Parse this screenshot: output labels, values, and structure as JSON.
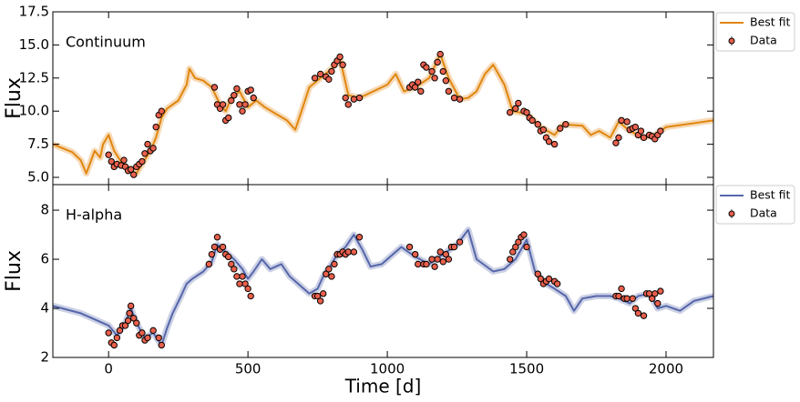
{
  "chart_data": [
    {
      "type": "line",
      "annotation": "Continuum",
      "y_label": "Flux",
      "xlim": [
        -200,
        2170
      ],
      "xticks": [
        0,
        500,
        1000,
        1500,
        2000
      ],
      "ylim": [
        4.45,
        17.5
      ],
      "yticks": [
        {
          "value": 5,
          "label": "5.0"
        },
        7.5,
        {
          "value": 10,
          "label": "10.0"
        },
        12.5,
        {
          "value": 15,
          "label": "15.0"
        },
        17.5
      ],
      "legend": "upper right outside",
      "series": [
        {
          "name": "Best fit",
          "color": "#e0860f",
          "x": [
            -200,
            -130,
            -100,
            -80,
            -50,
            -30,
            -20,
            0,
            20,
            50,
            80,
            100,
            120,
            150,
            170,
            190,
            210,
            250,
            280,
            290,
            310,
            340,
            370,
            400,
            420,
            440,
            470,
            500,
            530,
            560,
            600,
            640,
            670,
            700,
            720,
            760,
            800,
            830,
            860,
            900,
            950,
            1000,
            1030,
            1060,
            1100,
            1150,
            1190,
            1220,
            1260,
            1290,
            1320,
            1350,
            1380,
            1420,
            1450,
            1500,
            1550,
            1600,
            1630,
            1700,
            1730,
            1760,
            1800,
            1830,
            1870,
            1920,
            1960,
            2000,
            2170
          ],
          "values": [
            7.5,
            6.9,
            6.3,
            5.3,
            7,
            6.5,
            7.5,
            8.2,
            7,
            6,
            5.5,
            5.3,
            6,
            7,
            8,
            9.5,
            10.2,
            10.8,
            12,
            13.2,
            12.5,
            12.3,
            11.8,
            10.5,
            10,
            11,
            11.5,
            10.3,
            10.8,
            10.3,
            9.8,
            9.3,
            8.6,
            10.5,
            11.8,
            12.5,
            13.2,
            14,
            11.2,
            11,
            11.5,
            12,
            12.8,
            11.5,
            11.8,
            12.5,
            14.3,
            12.5,
            10.9,
            11,
            11.5,
            12.8,
            13.5,
            12,
            10,
            9.8,
            8.8,
            8.2,
            9,
            8.9,
            8.2,
            8.5,
            8,
            9.2,
            8.5,
            8,
            8.2,
            8.8,
            9.3
          ]
        },
        {
          "name": "Data",
          "color": "#e8604c",
          "x": [
            0,
            10,
            20,
            30,
            45,
            55,
            60,
            70,
            80,
            90,
            100,
            110,
            120,
            130,
            140,
            150,
            160,
            170,
            180,
            190,
            380,
            390,
            400,
            410,
            420,
            430,
            440,
            450,
            460,
            470,
            480,
            490,
            500,
            510,
            520,
            740,
            760,
            780,
            790,
            800,
            810,
            820,
            830,
            840,
            850,
            860,
            880,
            900,
            1080,
            1090,
            1100,
            1110,
            1120,
            1130,
            1140,
            1160,
            1170,
            1180,
            1190,
            1200,
            1210,
            1220,
            1240,
            1260,
            1440,
            1460,
            1470,
            1490,
            1500,
            1510,
            1520,
            1540,
            1550,
            1560,
            1570,
            1580,
            1600,
            1620,
            1640,
            1820,
            1830,
            1840,
            1860,
            1870,
            1880,
            1890,
            1900,
            1910,
            1920,
            1940,
            1950,
            1960,
            1970,
            1980
          ],
          "values": [
            6.7,
            6.2,
            5.8,
            6.0,
            5.9,
            6.3,
            5.8,
            5.5,
            5.6,
            5.2,
            5.8,
            6.0,
            6.2,
            6.8,
            7.5,
            7.0,
            7.2,
            8.8,
            9.7,
            10.0,
            11.8,
            10.5,
            10.2,
            10.5,
            9.3,
            9.5,
            10.8,
            11.2,
            11.7,
            10.5,
            10.0,
            10.5,
            11.5,
            11.6,
            11.0,
            12.5,
            12.8,
            12.6,
            12.4,
            13.0,
            13.5,
            13.8,
            14.1,
            13.5,
            11.0,
            10.5,
            10.9,
            11.0,
            11.8,
            12.0,
            11.8,
            12.2,
            11.5,
            13.5,
            13.3,
            13.0,
            12.5,
            13.7,
            14.3,
            13.0,
            12.3,
            11.5,
            11.0,
            10.9,
            9.9,
            10.2,
            10.6,
            10.0,
            9.9,
            9.5,
            9.3,
            9.0,
            8.5,
            8.6,
            8.0,
            7.7,
            7.5,
            8.7,
            9.0,
            7.6,
            8.0,
            9.3,
            9.2,
            8.6,
            8.7,
            8.8,
            8.2,
            8.5,
            8.0,
            8.2,
            8.1,
            7.9,
            8.2,
            8.5
          ]
        }
      ]
    },
    {
      "type": "line",
      "annotation": "H-alpha",
      "y_label": "Flux",
      "x_label": "Time [d]",
      "xlim": [
        -200,
        2170
      ],
      "xticks": [
        0,
        500,
        1000,
        1500,
        2000
      ],
      "ylim": [
        2,
        9.04
      ],
      "yticks": [
        2,
        4,
        6,
        8
      ],
      "legend": "upper right outside",
      "series": [
        {
          "name": "Best fit",
          "color": "#5566aa",
          "x": [
            -200,
            -100,
            0,
            30,
            60,
            80,
            100,
            130,
            160,
            190,
            210,
            230,
            260,
            280,
            300,
            340,
            370,
            390,
            420,
            450,
            480,
            500,
            520,
            550,
            580,
            620,
            650,
            680,
            720,
            750,
            770,
            800,
            820,
            850,
            880,
            910,
            940,
            980,
            1020,
            1050,
            1100,
            1150,
            1200,
            1250,
            1290,
            1320,
            1380,
            1420,
            1460,
            1500,
            1530,
            1570,
            1600,
            1640,
            1670,
            1700,
            1750,
            1800,
            1830,
            1870,
            1900,
            1940,
            1970,
            2000,
            2050,
            2100,
            2170
          ],
          "values": [
            4.1,
            3.8,
            3.3,
            2.9,
            3.4,
            4.0,
            3.4,
            2.8,
            3.0,
            2.5,
            3.2,
            3.8,
            4.5,
            5.0,
            5.2,
            5.5,
            5.9,
            6.6,
            6.3,
            6.0,
            5.6,
            5.2,
            5.5,
            6.0,
            5.6,
            5.8,
            5.3,
            5.0,
            4.6,
            4.8,
            5.3,
            5.8,
            6.2,
            6.5,
            7.0,
            6.4,
            5.7,
            5.8,
            6.2,
            6.5,
            6.1,
            5.8,
            6.2,
            6.6,
            7.2,
            6.0,
            5.5,
            5.6,
            6.0,
            6.8,
            5.5,
            5.0,
            4.8,
            4.5,
            3.9,
            4.4,
            4.5,
            4.5,
            4.4,
            4.2,
            4.5,
            4.6,
            4.0,
            4.1,
            3.9,
            4.3,
            4.5
          ]
        },
        {
          "name": "Data",
          "color": "#e8604c",
          "x": [
            0,
            10,
            20,
            30,
            40,
            50,
            60,
            70,
            75,
            80,
            90,
            100,
            110,
            120,
            130,
            140,
            160,
            180,
            190,
            360,
            370,
            380,
            390,
            400,
            410,
            420,
            430,
            440,
            450,
            460,
            470,
            480,
            490,
            500,
            510,
            740,
            750,
            760,
            770,
            780,
            790,
            800,
            810,
            820,
            830,
            840,
            850,
            860,
            880,
            900,
            1080,
            1100,
            1110,
            1130,
            1140,
            1160,
            1170,
            1180,
            1190,
            1200,
            1210,
            1220,
            1230,
            1240,
            1260,
            1440,
            1450,
            1460,
            1470,
            1480,
            1490,
            1500,
            1540,
            1550,
            1560,
            1570,
            1580,
            1600,
            1610,
            1820,
            1830,
            1840,
            1850,
            1860,
            1880,
            1890,
            1900,
            1920,
            1930,
            1940,
            1950,
            1960,
            1970,
            1980
          ],
          "values": [
            3.0,
            2.6,
            2.5,
            2.8,
            3.1,
            3.3,
            3.3,
            3.5,
            3.8,
            4.1,
            3.6,
            3.4,
            2.9,
            3.0,
            2.7,
            2.8,
            3.1,
            2.8,
            2.5,
            5.8,
            6.2,
            6.5,
            6.9,
            6.4,
            6.5,
            6.2,
            6.1,
            5.8,
            5.6,
            5.3,
            5.0,
            5.3,
            5.0,
            4.8,
            4.5,
            4.5,
            4.5,
            4.3,
            4.6,
            5.4,
            5.6,
            5.3,
            5.8,
            6.2,
            6.2,
            6.3,
            6.2,
            6.3,
            6.3,
            6.9,
            6.5,
            6.2,
            5.8,
            5.8,
            5.8,
            6.0,
            5.7,
            6.0,
            6.3,
            5.9,
            6.2,
            6.0,
            6.5,
            6.5,
            6.7,
            6.0,
            6.3,
            6.5,
            6.7,
            6.9,
            7.0,
            6.5,
            5.4,
            5.2,
            5.0,
            5.1,
            5.2,
            5.1,
            5.0,
            4.5,
            4.5,
            4.8,
            4.4,
            4.4,
            4.4,
            4.0,
            3.8,
            3.7,
            4.6,
            4.6,
            4.4,
            4.6,
            4.2,
            4.7
          ]
        }
      ]
    }
  ]
}
